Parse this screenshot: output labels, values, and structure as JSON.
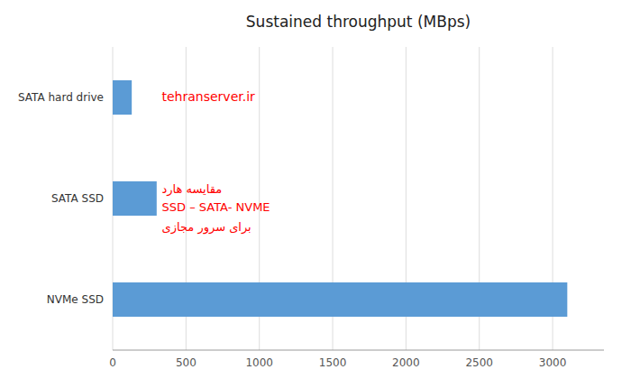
{
  "chart_data": {
    "type": "bar",
    "orientation": "horizontal",
    "title": "Sustained throughput (MBps)",
    "categories": [
      "NVMe SSD",
      "SATA SSD",
      "SATA hard drive"
    ],
    "values": [
      3100,
      300,
      130
    ],
    "color": "#5b9bd5",
    "xlim": [
      0,
      3350
    ],
    "xticks": [
      0,
      500,
      1000,
      1500,
      2000,
      2500,
      3000
    ],
    "grid": true,
    "annotations": [
      "tehranserver.ir",
      "مقایسه هارد",
      "SSD – SATA- NVME",
      "برای سرور مجازی"
    ]
  }
}
